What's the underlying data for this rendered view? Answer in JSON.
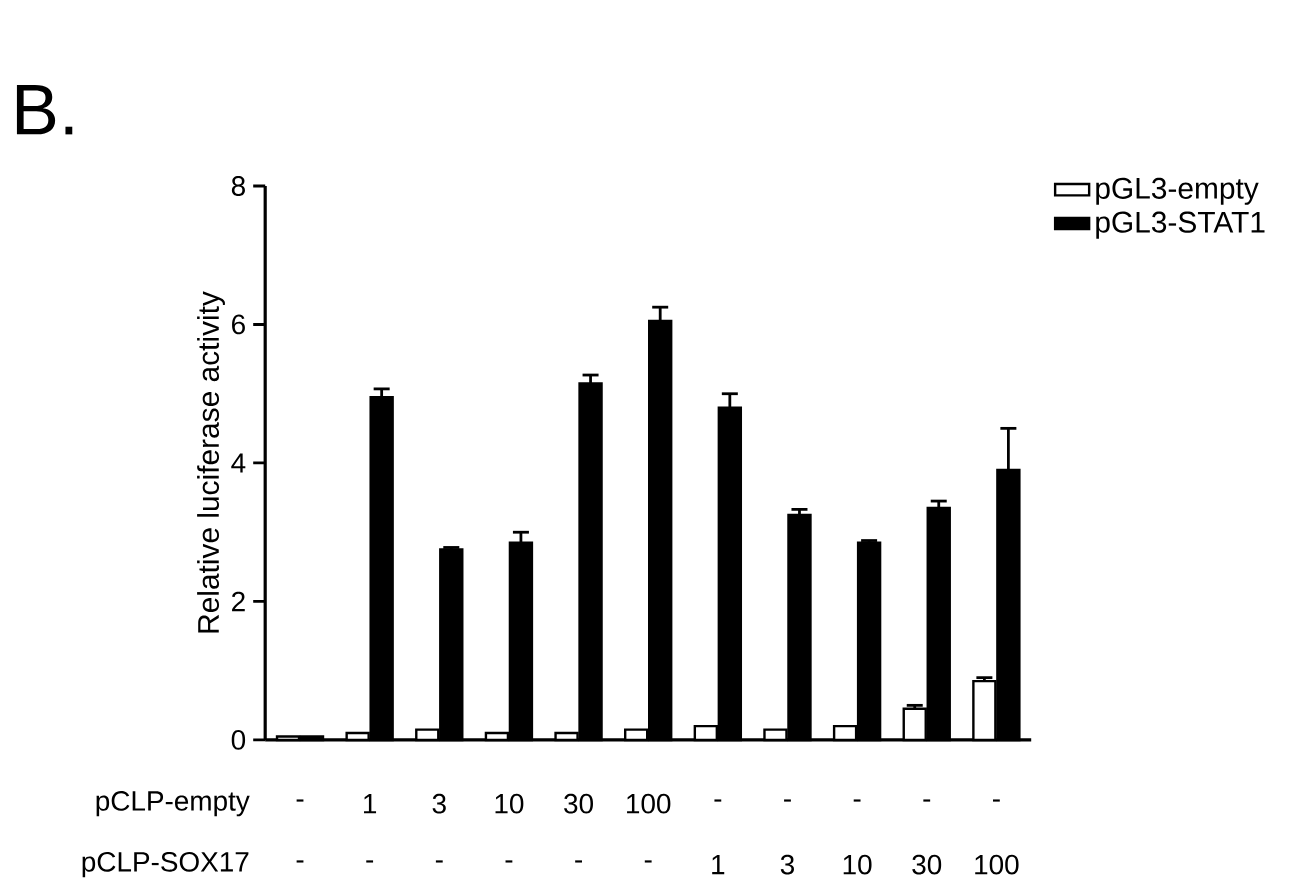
{
  "chart_data": {
    "type": "bar",
    "title": "B.",
    "ylabel": "Relative luciferase activity",
    "categories": [
      "-",
      "1",
      "3",
      "10",
      "30",
      "100",
      "-",
      "-",
      "-",
      "-",
      "-"
    ],
    "annotations": [
      "pCLP-empty",
      "pCLP-SOX17",
      "-",
      "-",
      "-",
      "-",
      "-",
      "-",
      "1",
      "3",
      "10",
      "30",
      "100"
    ],
    "series": [
      {
        "name": "pGL3-empty",
        "color": "#ffffff",
        "values": [
          0.05,
          0.1,
          0.15,
          0.1,
          0.1,
          0.15,
          0.2,
          0.15,
          0.2,
          0.45,
          0.85
        ],
        "errors": [
          null,
          null,
          null,
          null,
          null,
          null,
          null,
          null,
          null,
          0.05,
          0.05
        ]
      },
      {
        "name": "pGL3-STAT1",
        "color": "#000000",
        "values": [
          0.05,
          4.95,
          2.75,
          2.85,
          5.15,
          6.05,
          4.8,
          3.25,
          2.85,
          3.35,
          3.9
        ],
        "errors": [
          null,
          0.12,
          0.03,
          0.15,
          0.12,
          0.2,
          0.2,
          0.08,
          0.03,
          0.1,
          0.6
        ]
      }
    ],
    "ylim": [
      0,
      8
    ],
    "yticks": [
      0,
      2,
      4,
      6,
      8
    ],
    "grid": false,
    "legend": "top right"
  }
}
